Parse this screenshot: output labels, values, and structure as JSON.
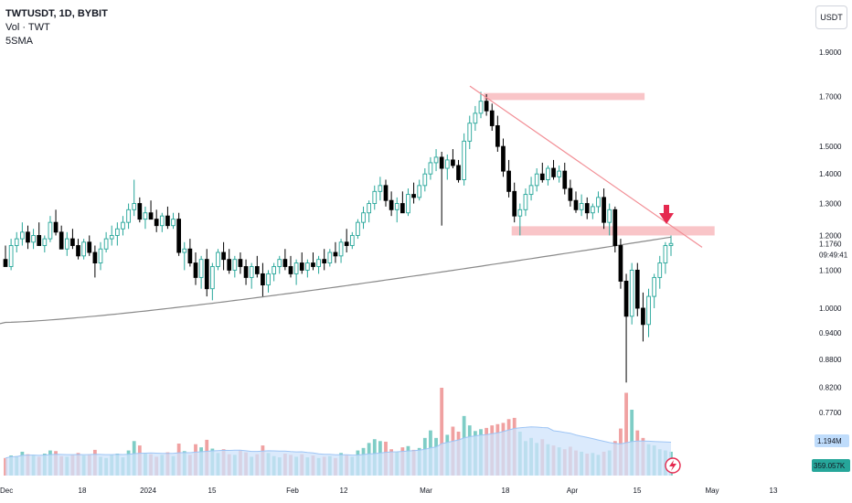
{
  "legend": {
    "symbol": "TWTUSDT, 1D, BYBIT",
    "volume": "Vol · TWT",
    "sma": "5SMA"
  },
  "currency_button": "USDT",
  "colors": {
    "up": "#26a69a",
    "down": "#000000",
    "vol_up": "#7fcdc6",
    "vol_down": "#f0a1a1",
    "resistance_zone": "#f8bbbe",
    "trendline": "#f28e95",
    "moving_average": "#8a8a8a",
    "vol_ma_fill": "#cfe3fb",
    "arrow": "#e5294f",
    "volume_badge_bg": "#bfdcfb",
    "vol_sma_badge_bg": "#26a69a"
  },
  "chart_data": {
    "type": "candlestick",
    "price_ticks": [
      "1.9000",
      "1.7000",
      "1.5000",
      "1.4000",
      "1.3000",
      "1.2000",
      "1.1000",
      "1.0000",
      "0.9400",
      "0.8800",
      "0.8200",
      "0.7700"
    ],
    "current_price": "1.1760",
    "countdown": "09:49:41",
    "volume_value": "1.194M",
    "volume_sma_value": "359.057K",
    "x_ticks": [
      "Dec",
      "18",
      "2024",
      "15",
      "Feb",
      "12",
      "Mar",
      "18",
      "Apr",
      "15",
      "May",
      "13"
    ],
    "candles": [
      [
        1.13,
        1.17,
        1.11,
        1.11
      ],
      [
        1.11,
        1.19,
        1.1,
        1.17
      ],
      [
        1.17,
        1.21,
        1.15,
        1.19
      ],
      [
        1.19,
        1.24,
        1.17,
        1.21
      ],
      [
        1.21,
        1.23,
        1.16,
        1.18
      ],
      [
        1.18,
        1.22,
        1.16,
        1.2
      ],
      [
        1.2,
        1.24,
        1.17,
        1.17
      ],
      [
        1.17,
        1.2,
        1.15,
        1.19
      ],
      [
        1.19,
        1.26,
        1.18,
        1.24
      ],
      [
        1.24,
        1.28,
        1.2,
        1.21
      ],
      [
        1.21,
        1.23,
        1.16,
        1.16
      ],
      [
        1.16,
        1.21,
        1.14,
        1.19
      ],
      [
        1.19,
        1.22,
        1.16,
        1.17
      ],
      [
        1.17,
        1.19,
        1.13,
        1.14
      ],
      [
        1.14,
        1.19,
        1.13,
        1.18
      ],
      [
        1.18,
        1.2,
        1.14,
        1.15
      ],
      [
        1.15,
        1.17,
        1.08,
        1.12
      ],
      [
        1.12,
        1.18,
        1.1,
        1.16
      ],
      [
        1.16,
        1.21,
        1.15,
        1.19
      ],
      [
        1.19,
        1.23,
        1.17,
        1.2
      ],
      [
        1.2,
        1.24,
        1.17,
        1.22
      ],
      [
        1.22,
        1.26,
        1.2,
        1.24
      ],
      [
        1.24,
        1.3,
        1.22,
        1.28
      ],
      [
        1.28,
        1.38,
        1.26,
        1.3
      ],
      [
        1.3,
        1.32,
        1.24,
        1.25
      ],
      [
        1.25,
        1.29,
        1.22,
        1.27
      ],
      [
        1.27,
        1.31,
        1.25,
        1.25
      ],
      [
        1.25,
        1.28,
        1.21,
        1.23
      ],
      [
        1.23,
        1.27,
        1.21,
        1.26
      ],
      [
        1.26,
        1.29,
        1.22,
        1.23
      ],
      [
        1.23,
        1.27,
        1.22,
        1.25
      ],
      [
        1.25,
        1.27,
        1.14,
        1.15
      ],
      [
        1.15,
        1.18,
        1.1,
        1.16
      ],
      [
        1.16,
        1.19,
        1.11,
        1.12
      ],
      [
        1.12,
        1.15,
        1.06,
        1.08
      ],
      [
        1.08,
        1.14,
        1.05,
        1.13
      ],
      [
        1.13,
        1.16,
        1.03,
        1.05
      ],
      [
        1.05,
        1.12,
        1.02,
        1.11
      ],
      [
        1.11,
        1.16,
        1.1,
        1.15
      ],
      [
        1.15,
        1.18,
        1.1,
        1.13
      ],
      [
        1.13,
        1.16,
        1.09,
        1.1
      ],
      [
        1.1,
        1.14,
        1.08,
        1.13
      ],
      [
        1.13,
        1.15,
        1.09,
        1.11
      ],
      [
        1.11,
        1.13,
        1.06,
        1.08
      ],
      [
        1.08,
        1.12,
        1.05,
        1.11
      ],
      [
        1.11,
        1.14,
        1.08,
        1.09
      ],
      [
        1.09,
        1.12,
        1.03,
        1.06
      ],
      [
        1.06,
        1.1,
        1.04,
        1.09
      ],
      [
        1.09,
        1.12,
        1.07,
        1.11
      ],
      [
        1.11,
        1.14,
        1.09,
        1.13
      ],
      [
        1.13,
        1.16,
        1.1,
        1.11
      ],
      [
        1.11,
        1.14,
        1.08,
        1.09
      ],
      [
        1.09,
        1.13,
        1.06,
        1.12
      ],
      [
        1.12,
        1.15,
        1.09,
        1.1
      ],
      [
        1.1,
        1.13,
        1.08,
        1.12
      ],
      [
        1.12,
        1.15,
        1.1,
        1.11
      ],
      [
        1.11,
        1.14,
        1.09,
        1.13
      ],
      [
        1.13,
        1.16,
        1.1,
        1.12
      ],
      [
        1.12,
        1.16,
        1.11,
        1.15
      ],
      [
        1.15,
        1.18,
        1.12,
        1.14
      ],
      [
        1.14,
        1.19,
        1.12,
        1.18
      ],
      [
        1.18,
        1.22,
        1.15,
        1.17
      ],
      [
        1.17,
        1.21,
        1.16,
        1.2
      ],
      [
        1.2,
        1.25,
        1.19,
        1.24
      ],
      [
        1.24,
        1.29,
        1.22,
        1.27
      ],
      [
        1.27,
        1.31,
        1.24,
        1.3
      ],
      [
        1.3,
        1.36,
        1.28,
        1.34
      ],
      [
        1.34,
        1.39,
        1.31,
        1.36
      ],
      [
        1.36,
        1.38,
        1.29,
        1.31
      ],
      [
        1.31,
        1.34,
        1.26,
        1.28
      ],
      [
        1.28,
        1.32,
        1.24,
        1.3
      ],
      [
        1.3,
        1.34,
        1.27,
        1.27
      ],
      [
        1.27,
        1.35,
        1.26,
        1.33
      ],
      [
        1.33,
        1.37,
        1.3,
        1.32
      ],
      [
        1.32,
        1.38,
        1.31,
        1.36
      ],
      [
        1.36,
        1.42,
        1.34,
        1.4
      ],
      [
        1.4,
        1.46,
        1.38,
        1.44
      ],
      [
        1.44,
        1.49,
        1.41,
        1.46
      ],
      [
        1.46,
        1.48,
        1.23,
        1.42
      ],
      [
        1.42,
        1.47,
        1.38,
        1.45
      ],
      [
        1.45,
        1.49,
        1.42,
        1.43
      ],
      [
        1.43,
        1.45,
        1.37,
        1.38
      ],
      [
        1.38,
        1.55,
        1.36,
        1.52
      ],
      [
        1.52,
        1.62,
        1.49,
        1.59
      ],
      [
        1.59,
        1.66,
        1.56,
        1.63
      ],
      [
        1.63,
        1.72,
        1.61,
        1.68
      ],
      [
        1.68,
        1.71,
        1.62,
        1.64
      ],
      [
        1.64,
        1.67,
        1.56,
        1.58
      ],
      [
        1.58,
        1.62,
        1.48,
        1.5
      ],
      [
        1.5,
        1.53,
        1.39,
        1.41
      ],
      [
        1.41,
        1.45,
        1.32,
        1.34
      ],
      [
        1.34,
        1.37,
        1.24,
        1.26
      ],
      [
        1.26,
        1.3,
        1.2,
        1.28
      ],
      [
        1.28,
        1.35,
        1.26,
        1.33
      ],
      [
        1.33,
        1.39,
        1.31,
        1.36
      ],
      [
        1.36,
        1.42,
        1.34,
        1.4
      ],
      [
        1.4,
        1.44,
        1.37,
        1.38
      ],
      [
        1.38,
        1.43,
        1.36,
        1.42
      ],
      [
        1.42,
        1.45,
        1.38,
        1.39
      ],
      [
        1.39,
        1.43,
        1.37,
        1.41
      ],
      [
        1.41,
        1.44,
        1.33,
        1.35
      ],
      [
        1.35,
        1.38,
        1.29,
        1.31
      ],
      [
        1.31,
        1.34,
        1.27,
        1.28
      ],
      [
        1.28,
        1.33,
        1.26,
        1.3
      ],
      [
        1.3,
        1.32,
        1.25,
        1.27
      ],
      [
        1.27,
        1.3,
        1.25,
        1.29
      ],
      [
        1.29,
        1.34,
        1.27,
        1.32
      ],
      [
        1.32,
        1.35,
        1.22,
        1.24
      ],
      [
        1.24,
        1.3,
        1.2,
        1.28
      ],
      [
        1.28,
        1.29,
        1.15,
        1.17
      ],
      [
        1.17,
        1.19,
        1.05,
        1.07
      ],
      [
        1.07,
        1.09,
        0.83,
        0.98
      ],
      [
        0.98,
        1.12,
        0.96,
        1.1
      ],
      [
        1.1,
        1.12,
        0.98,
        1.0
      ],
      [
        1.0,
        1.04,
        0.92,
        0.96
      ],
      [
        0.96,
        1.05,
        0.93,
        1.03
      ],
      [
        1.03,
        1.09,
        1.0,
        1.08
      ],
      [
        1.08,
        1.14,
        1.05,
        1.12
      ],
      [
        1.12,
        1.18,
        1.09,
        1.17
      ],
      [
        1.17,
        1.2,
        1.14,
        1.176
      ]
    ],
    "volumes": [
      0.28,
      0.32,
      0.31,
      0.38,
      0.34,
      0.33,
      0.3,
      0.35,
      0.4,
      0.39,
      0.31,
      0.3,
      0.33,
      0.36,
      0.32,
      0.34,
      0.41,
      0.3,
      0.28,
      0.33,
      0.35,
      0.29,
      0.4,
      0.55,
      0.48,
      0.36,
      0.34,
      0.3,
      0.33,
      0.37,
      0.31,
      0.51,
      0.39,
      0.33,
      0.5,
      0.45,
      0.57,
      0.43,
      0.36,
      0.42,
      0.34,
      0.33,
      0.4,
      0.37,
      0.3,
      0.34,
      0.48,
      0.36,
      0.31,
      0.29,
      0.35,
      0.33,
      0.3,
      0.34,
      0.29,
      0.32,
      0.28,
      0.3,
      0.31,
      0.28,
      0.36,
      0.33,
      0.3,
      0.4,
      0.44,
      0.52,
      0.58,
      0.55,
      0.54,
      0.42,
      0.38,
      0.45,
      0.47,
      0.41,
      0.44,
      0.6,
      0.72,
      0.6,
      1.4,
      0.65,
      0.78,
      0.7,
      0.95,
      0.8,
      0.71,
      0.74,
      0.76,
      0.8,
      0.82,
      0.84,
      0.9,
      0.92,
      0.7,
      0.55,
      0.6,
      0.52,
      0.58,
      0.5,
      0.48,
      0.45,
      0.42,
      0.46,
      0.4,
      0.38,
      0.35,
      0.36,
      0.33,
      0.38,
      0.4,
      0.55,
      0.75,
      1.32,
      1.05,
      0.72,
      0.6,
      0.5,
      0.48,
      0.42,
      0.4,
      0.38
    ]
  },
  "annotations": {
    "resistance_zone_high": [
      1.685,
      1.715
    ],
    "support_zone": [
      1.2,
      1.228
    ],
    "trendline": [
      [
        1.745,
        1.165
      ]
    ],
    "arrow_label": ""
  }
}
